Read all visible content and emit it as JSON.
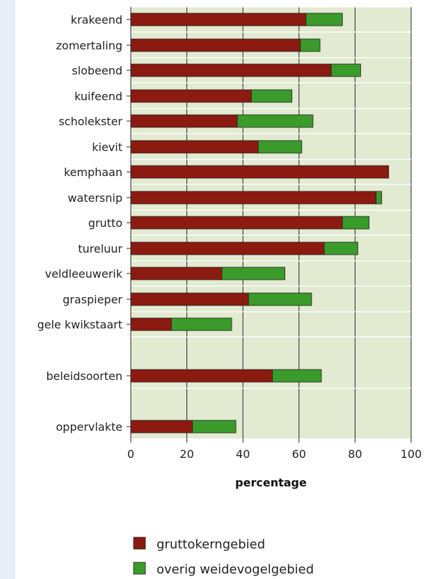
{
  "chart_data": {
    "type": "bar",
    "stacked": true,
    "orientation": "horizontal",
    "categories": [
      "krakeend",
      "zomertaling",
      "slobeend",
      "kuifeend",
      "scholekster",
      "kievit",
      "kemphaan",
      "watersnip",
      "grutto",
      "tureluur",
      "veldleeuwerik",
      "graspieper",
      "gele kwikstaart",
      "beleidsoorten",
      "oppervlakte"
    ],
    "series": [
      {
        "name": "gruttokerngebied",
        "color": "#8b1a10",
        "values": [
          62.5,
          60.5,
          71.5,
          43,
          38,
          45.5,
          92,
          87.5,
          75.5,
          69,
          32.5,
          42,
          14.5,
          50.5,
          22
        ]
      },
      {
        "name": "overig weidevogelgebied",
        "color": "#3a9a2a",
        "values": [
          13,
          7,
          10.5,
          14.5,
          27,
          15.5,
          0,
          2,
          9.5,
          12,
          22.5,
          22.5,
          21.5,
          17.5,
          15.5
        ]
      }
    ],
    "xlabel": "percentage",
    "xlim": [
      0,
      100
    ],
    "xticks": [
      0,
      20,
      40,
      60,
      80,
      100
    ],
    "grid": true,
    "plot_background": "#e2ead2",
    "legend_position": "bottom"
  }
}
